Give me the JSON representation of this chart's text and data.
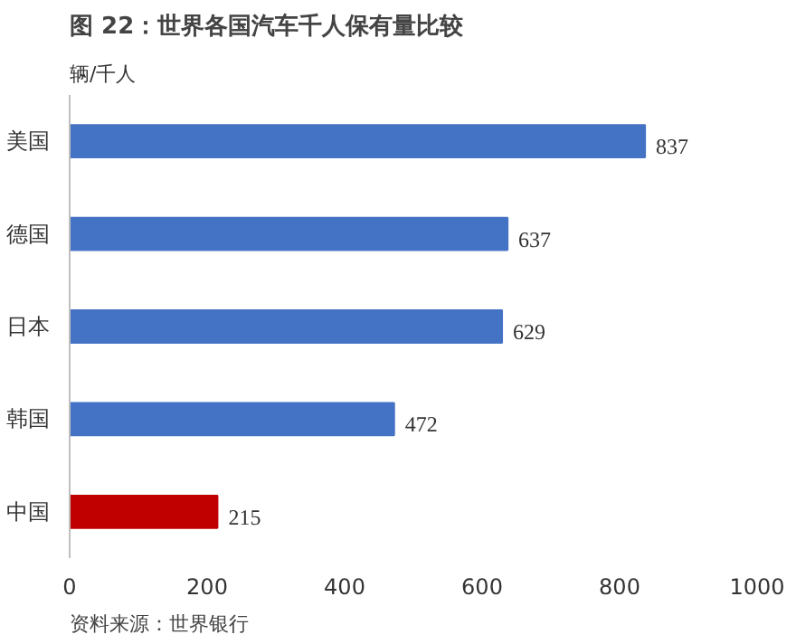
{
  "chart_data": {
    "type": "bar",
    "orientation": "horizontal",
    "title": "图 22：世界各国汽车千人保有量比较",
    "ylabel": "辆/千人",
    "categories": [
      "美国",
      "德国",
      "日本",
      "韩国",
      "中国"
    ],
    "values": [
      837,
      637,
      629,
      472,
      215
    ],
    "colors": [
      "#4472c4",
      "#4472c4",
      "#4472c4",
      "#4472c4",
      "#c00000"
    ],
    "xlim": [
      0,
      1000
    ],
    "xticks": [
      0,
      200,
      400,
      600,
      800,
      1000
    ],
    "grid": false,
    "data_labels": true,
    "annotations": [
      "资料来源：世界银行"
    ]
  }
}
